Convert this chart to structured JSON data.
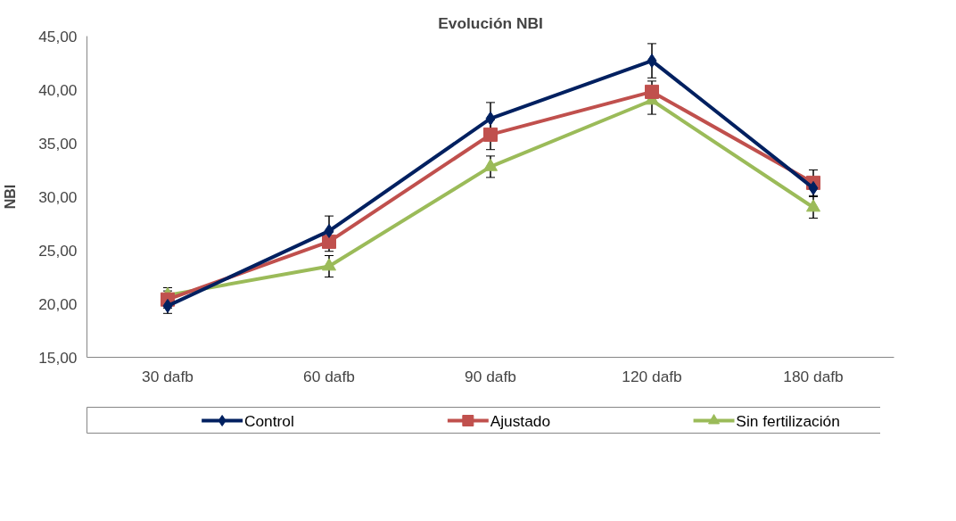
{
  "chart_data": {
    "type": "line",
    "title": "Evolución NBI",
    "ylabel": "NBI",
    "categories": [
      "30 dafb",
      "60 dafb",
      "90 dafb",
      "120 dafb",
      "180 dafb"
    ],
    "series": [
      {
        "name": "Control",
        "color": "#002060",
        "marker": "diamond",
        "values": [
          19.8,
          26.8,
          37.3,
          42.7,
          30.8
        ],
        "errors": [
          0.7,
          1.4,
          1.5,
          1.6,
          0.8
        ]
      },
      {
        "name": "Ajustado",
        "color": "#c0504d",
        "marker": "square",
        "values": [
          20.4,
          25.8,
          35.8,
          39.8,
          31.3
        ],
        "errors": [
          0.8,
          0.9,
          1.4,
          1.0,
          1.2
        ]
      },
      {
        "name": "Sin fertilización",
        "color": "#9bbb59",
        "marker": "triangle",
        "values": [
          20.8,
          23.5,
          32.8,
          39.0,
          29.0
        ],
        "errors": [
          0.7,
          1.0,
          1.0,
          1.3,
          1.0
        ]
      }
    ],
    "ylim": [
      15,
      45
    ],
    "yticks": [
      {
        "value": 15,
        "label": "15,00"
      },
      {
        "value": 20,
        "label": "20,00"
      },
      {
        "value": 25,
        "label": "25,00"
      },
      {
        "value": 30,
        "label": "30,00"
      },
      {
        "value": 35,
        "label": "35,00"
      },
      {
        "value": 40,
        "label": "40,00"
      },
      {
        "value": 45,
        "label": "45,00"
      }
    ],
    "grid": false,
    "legend": "bottom",
    "line_style": "solid"
  }
}
